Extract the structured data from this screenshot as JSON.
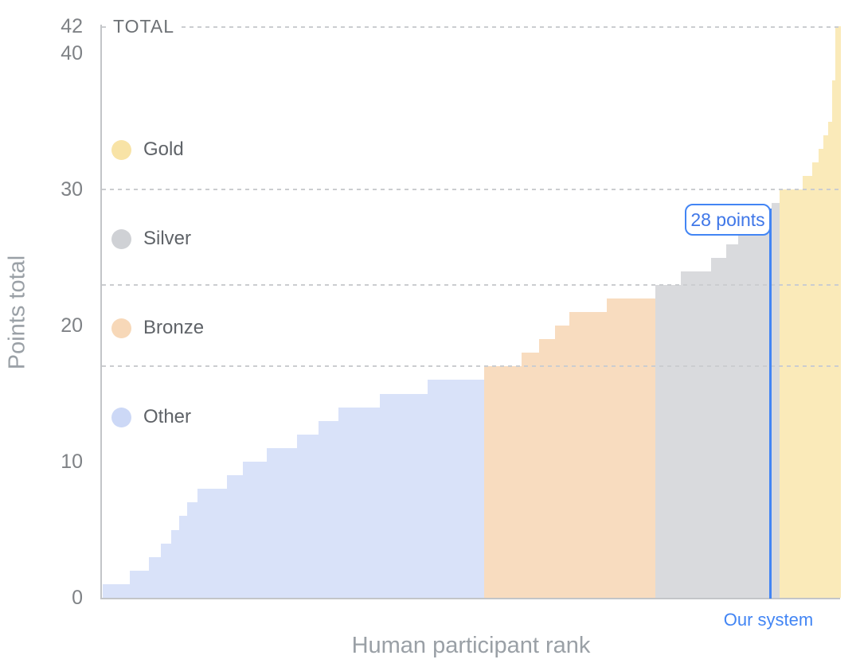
{
  "chart_data": {
    "type": "bar",
    "xlabel": "Human participant rank",
    "ylabel": "Points total",
    "ylim": [
      0,
      42
    ],
    "yticks": [
      42,
      40,
      30,
      20,
      10,
      0
    ],
    "grid": "dashed horizontal lines at medal thresholds only",
    "legend_position": "upper-left inside plot",
    "thresholds": [
      {
        "value": 42,
        "label": "TOTAL"
      },
      {
        "value": 30,
        "label": ""
      },
      {
        "value": 23,
        "label": ""
      },
      {
        "value": 17,
        "label": ""
      }
    ],
    "legend": [
      {
        "label": "Gold",
        "category": "gold",
        "color": "#f8e3a6"
      },
      {
        "label": "Silver",
        "category": "silver",
        "color": "#cfd1d5"
      },
      {
        "label": "Bronze",
        "category": "bronze",
        "color": "#f7d8b8"
      },
      {
        "label": "Other",
        "category": "other",
        "color": "#ccd8f6"
      }
    ],
    "bar_colors": {
      "other": "#d9e2f9",
      "bronze": "#f8dcbf",
      "silver": "#d9dadd",
      "gold": "#faeab9"
    },
    "category_score_ranges": {
      "other": [
        1,
        16
      ],
      "bronze": [
        17,
        22
      ],
      "silver": [
        23,
        29
      ],
      "gold": [
        30,
        42
      ]
    },
    "segments_note": "sorted step curve of participant scores: [points, x0_px, x1_px] across 927px rank axis",
    "segments": [
      [
        1,
        1,
        35
      ],
      [
        2,
        35,
        59
      ],
      [
        3,
        59,
        74
      ],
      [
        4,
        74,
        87
      ],
      [
        5,
        87,
        97
      ],
      [
        6,
        97,
        107
      ],
      [
        7,
        107,
        120
      ],
      [
        8,
        120,
        157
      ],
      [
        9,
        157,
        177
      ],
      [
        10,
        177,
        207
      ],
      [
        11,
        207,
        245
      ],
      [
        12,
        245,
        272
      ],
      [
        13,
        272,
        297
      ],
      [
        14,
        297,
        349
      ],
      [
        15,
        349,
        409
      ],
      [
        16,
        409,
        480
      ],
      [
        17,
        480,
        527
      ],
      [
        18,
        527,
        549
      ],
      [
        19,
        549,
        569
      ],
      [
        20,
        569,
        587
      ],
      [
        21,
        587,
        634
      ],
      [
        22,
        634,
        695
      ],
      [
        23,
        695,
        727
      ],
      [
        24,
        727,
        765
      ],
      [
        25,
        765,
        784
      ],
      [
        26,
        784,
        799
      ],
      [
        27,
        799,
        817
      ],
      [
        28,
        817,
        841
      ],
      [
        29,
        841,
        851
      ],
      [
        30,
        851,
        880
      ],
      [
        31,
        880,
        892
      ],
      [
        32,
        892,
        900
      ],
      [
        33,
        900,
        906
      ],
      [
        34,
        906,
        912
      ],
      [
        35,
        912,
        917
      ],
      [
        38,
        917,
        921
      ],
      [
        42,
        921,
        927
      ]
    ],
    "annotation": {
      "label": "28 points",
      "value": 28,
      "marker_label": "Our system"
    },
    "accent_color": "#4285f4"
  }
}
